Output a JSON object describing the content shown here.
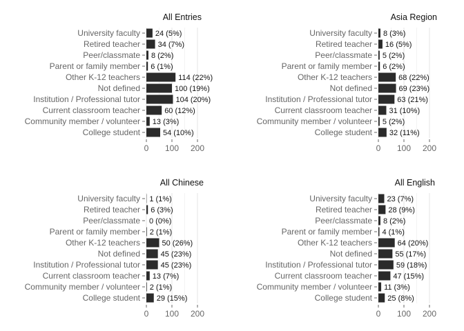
{
  "chart_data": [
    {
      "type": "bar",
      "orientation": "horizontal",
      "title": "All Entries",
      "categories": [
        "University faculty",
        "Retired teacher",
        "Peer/classmate",
        "Parent or family member",
        "Other K-12 teachers",
        "Not defined",
        "Institution / Professional tutor",
        "Current classroom teacher",
        "Community member / volunteer",
        "College student"
      ],
      "values": [
        24,
        34,
        8,
        6,
        114,
        100,
        104,
        60,
        13,
        54
      ],
      "labels": [
        "24 (5%)",
        "34 (7%)",
        "8 (2%)",
        "6 (1%)",
        "114 (22%)",
        "100 (19%)",
        "104 (20%)",
        "60 (12%)",
        "13 (3%)",
        "54 (10%)"
      ],
      "xlim": [
        0,
        250
      ],
      "xticks": [
        "0",
        "100",
        "200"
      ],
      "bar_color": "#2b2b2b",
      "grid": true
    },
    {
      "type": "bar",
      "orientation": "horizontal",
      "title": "Asia Region",
      "categories": [
        "University faculty",
        "Retired teacher",
        "Peer/classmate",
        "Parent or family member",
        "Other K-12 teachers",
        "Not defined",
        "Institution / Professional tutor",
        "Current classroom teacher",
        "Community member / volunteer",
        "College student"
      ],
      "values": [
        8,
        16,
        5,
        6,
        68,
        69,
        63,
        31,
        5,
        32
      ],
      "labels": [
        "8 (3%)",
        "16 (5%)",
        "5 (2%)",
        "6 (2%)",
        "68 (22%)",
        "69 (23%)",
        "63 (21%)",
        "31 (10%)",
        "5 (2%)",
        "32 (11%)"
      ],
      "xlim": [
        0,
        250
      ],
      "xticks": [
        "0",
        "100",
        "200"
      ],
      "bar_color": "#2b2b2b",
      "grid": true
    },
    {
      "type": "bar",
      "orientation": "horizontal",
      "title": "All Chinese",
      "categories": [
        "University faculty",
        "Retired teacher",
        "Peer/classmate",
        "Parent or family member",
        "Other K-12 teachers",
        "Not defined",
        "Institution / Professional tutor",
        "Current classroom teacher",
        "Community member / volunteer",
        "College student"
      ],
      "values": [
        1,
        6,
        0,
        2,
        50,
        45,
        45,
        13,
        2,
        29
      ],
      "labels": [
        "1 (1%)",
        "6 (3%)",
        "0 (0%)",
        "2 (1%)",
        "50 (26%)",
        "45 (23%)",
        "45 (23%)",
        "13 (7%)",
        "2 (1%)",
        "29 (15%)"
      ],
      "xlim": [
        0,
        250
      ],
      "xticks": [
        "0",
        "100",
        "200"
      ],
      "bar_color": "#2b2b2b",
      "grid": true
    },
    {
      "type": "bar",
      "orientation": "horizontal",
      "title": "All English",
      "categories": [
        "University faculty",
        "Retired teacher",
        "Peer/classmate",
        "Parent or family member",
        "Other K-12 teachers",
        "Not defined",
        "Institution / Professional tutor",
        "Current classroom teacher",
        "Community member / volunteer",
        "College student"
      ],
      "values": [
        23,
        28,
        8,
        4,
        64,
        55,
        59,
        47,
        11,
        25
      ],
      "labels": [
        "23 (7%)",
        "28 (9%)",
        "8 (2%)",
        "4 (1%)",
        "64 (20%)",
        "55 (17%)",
        "59 (18%)",
        "47 (15%)",
        "11 (3%)",
        "25 (8%)"
      ],
      "xlim": [
        0,
        250
      ],
      "xticks": [
        "0",
        "100",
        "200"
      ],
      "bar_color": "#2b2b2b",
      "grid": true
    }
  ]
}
